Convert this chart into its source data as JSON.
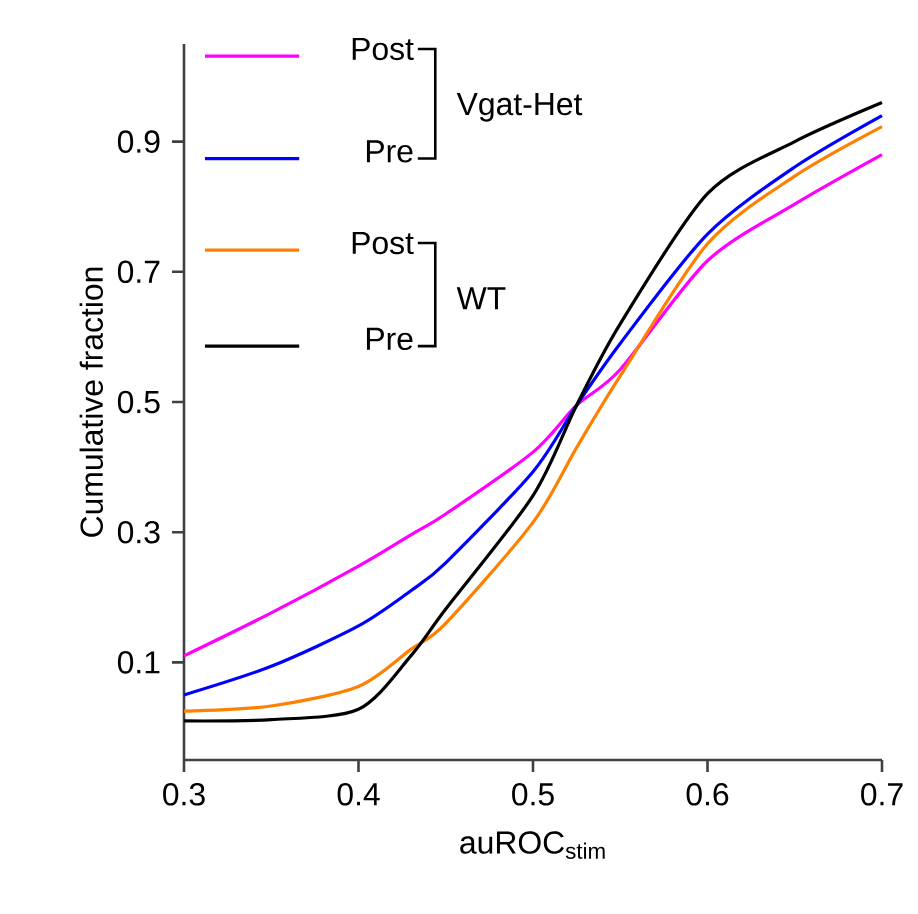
{
  "chart_data": {
    "type": "line",
    "xlabel": "auROC$_{stim}$",
    "ylabel": "Cumulative fraction",
    "xlim": [
      0.3,
      0.7
    ],
    "ylim": [
      -0.05,
      1.05
    ],
    "xticks": [
      0.3,
      0.4,
      0.5,
      0.6,
      0.7
    ],
    "yticks": [
      0.1,
      0.3,
      0.5,
      0.7,
      0.9
    ],
    "legend": "top left",
    "grid": false,
    "marker": "none",
    "line_style": "solid",
    "annotations": [
      "Vgat-Het",
      "WT"
    ],
    "x": [
      0.3,
      0.35,
      0.4,
      0.43,
      0.45,
      0.5,
      0.525,
      0.55,
      0.6,
      0.65,
      0.7
    ],
    "series": [
      {
        "name": "Post",
        "color": "#ff00ff",
        "values": [
          0.11,
          0.176,
          0.248,
          0.296,
          0.328,
          0.423,
          0.495,
          0.55,
          0.717,
          0.804,
          0.88
        ]
      },
      {
        "name": "Pre",
        "color": "#0000ff",
        "values": [
          0.05,
          0.094,
          0.156,
          0.21,
          0.253,
          0.393,
          0.495,
          0.59,
          0.758,
          0.861,
          0.94
        ]
      },
      {
        "name": "Post",
        "color": "#ff8000",
        "values": [
          0.025,
          0.033,
          0.063,
          0.12,
          0.16,
          0.315,
          0.43,
          0.54,
          0.743,
          0.847,
          0.923
        ]
      },
      {
        "name": "Pre",
        "color": "#000000",
        "values": [
          0.01,
          0.012,
          0.028,
          0.11,
          0.182,
          0.356,
          0.495,
          0.62,
          0.82,
          0.9,
          0.96
        ]
      }
    ]
  }
}
